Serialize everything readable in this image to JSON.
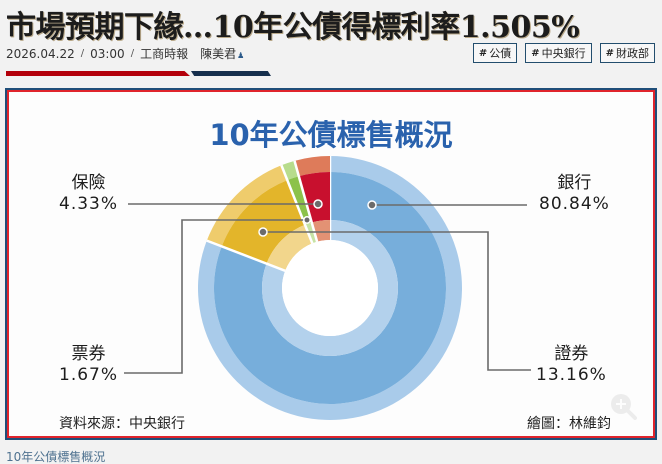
{
  "article": {
    "headline": "市場預期下緣…10年公債得標利率1.505%",
    "date": "2026.04.22",
    "time": "03:00",
    "source": "工商時報",
    "author": "陳美君",
    "separator": "/",
    "tags": [
      {
        "hash": "#",
        "label": "公債"
      },
      {
        "hash": "#",
        "label": "中央銀行"
      },
      {
        "hash": "#",
        "label": "財政部"
      }
    ],
    "accent_colors": {
      "red": "#b3000b",
      "navy": "#162f4d"
    },
    "image_caption": "10年公債標售概況"
  },
  "figure": {
    "title": "10年公債標售概況",
    "source_text": "資料來源：中央銀行",
    "credit_text": "繪圖：林維鈞",
    "labels": {
      "bank": {
        "name": "銀行",
        "pct": "80.84%"
      },
      "securities": {
        "name": "證券",
        "pct": "13.16%"
      },
      "bills": {
        "name": "票券",
        "pct": "1.67%"
      },
      "insurance": {
        "name": "保險",
        "pct": "4.33%"
      }
    }
  },
  "chart_data": {
    "type": "pie",
    "title": "10年公債標售概況",
    "subtype": "donut",
    "categories": [
      "銀行",
      "證券",
      "票券",
      "保險"
    ],
    "values": [
      80.84,
      13.16,
      1.67,
      4.33
    ],
    "unit": "%",
    "colors": [
      "#77aedb",
      "#e3b52a",
      "#8cc24a",
      "#c8102e"
    ],
    "start_angle_deg": 0,
    "direction": "clockwise",
    "legend": "callout labels",
    "annotations": [
      "資料來源：中央銀行",
      "繪圖：林維鈞"
    ]
  }
}
